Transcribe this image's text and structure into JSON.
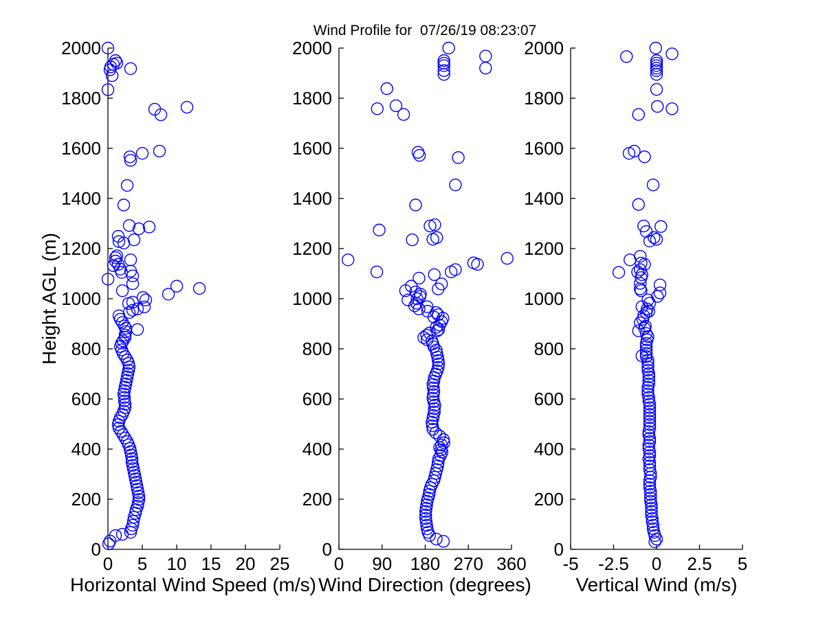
{
  "title": "Wind Profile for  07/26/19 08:23:07",
  "marker": {
    "shape": "circle",
    "color": "#0000FF"
  },
  "axis_color": "#000000",
  "background_color": "#FFFFFF",
  "chart_data": [
    {
      "type": "scatter",
      "xlabel": "Horizontal Wind Speed (m/s)",
      "ylabel": "Height AGL (m)",
      "xlim": [
        0,
        25
      ],
      "ylim": [
        0,
        2000
      ],
      "xticks": [
        0,
        5,
        10,
        15,
        20,
        25
      ],
      "yticks": [
        0,
        200,
        400,
        600,
        800,
        1000,
        1200,
        1400,
        1600,
        1800,
        2000
      ],
      "grid": false,
      "points": [
        [
          0.1,
          22
        ],
        [
          0.3,
          33
        ],
        [
          1.1,
          55
        ],
        [
          2.1,
          60
        ],
        [
          3.3,
          68
        ],
        [
          3.4,
          82
        ],
        [
          3.6,
          96
        ],
        [
          3.7,
          112
        ],
        [
          3.8,
          128
        ],
        [
          4.0,
          144
        ],
        [
          4.1,
          158
        ],
        [
          4.3,
          172
        ],
        [
          4.4,
          186
        ],
        [
          4.5,
          199
        ],
        [
          4.5,
          212
        ],
        [
          4.4,
          226
        ],
        [
          4.3,
          240
        ],
        [
          4.2,
          254
        ],
        [
          4.1,
          268
        ],
        [
          4.0,
          281
        ],
        [
          3.9,
          295
        ],
        [
          3.8,
          308
        ],
        [
          3.7,
          322
        ],
        [
          3.6,
          335
        ],
        [
          3.5,
          349
        ],
        [
          3.5,
          362
        ],
        [
          3.4,
          376
        ],
        [
          3.3,
          390
        ],
        [
          3.2,
          403
        ],
        [
          3.0,
          417
        ],
        [
          2.8,
          430
        ],
        [
          2.5,
          444
        ],
        [
          2.2,
          457
        ],
        [
          1.9,
          471
        ],
        [
          1.6,
          484
        ],
        [
          1.5,
          498
        ],
        [
          1.6,
          511
        ],
        [
          1.8,
          525
        ],
        [
          2.1,
          538
        ],
        [
          2.3,
          552
        ],
        [
          2.5,
          565
        ],
        [
          2.5,
          579
        ],
        [
          2.4,
          592
        ],
        [
          2.4,
          606
        ],
        [
          2.3,
          620
        ],
        [
          2.4,
          633
        ],
        [
          2.5,
          647
        ],
        [
          2.6,
          660
        ],
        [
          2.7,
          674
        ],
        [
          2.8,
          688
        ],
        [
          2.9,
          701
        ],
        [
          3.0,
          715
        ],
        [
          3.1,
          728
        ],
        [
          3.0,
          742
        ],
        [
          2.8,
          755
        ],
        [
          2.5,
          769
        ],
        [
          2.2,
          782
        ],
        [
          2.0,
          796
        ],
        [
          1.8,
          809
        ],
        [
          2.0,
          823
        ],
        [
          2.2,
          832
        ],
        [
          2.5,
          846
        ],
        [
          2.5,
          855
        ],
        [
          2.6,
          869
        ],
        [
          4.3,
          877
        ],
        [
          2.6,
          882
        ],
        [
          2.4,
          891
        ],
        [
          2.1,
          905
        ],
        [
          1.8,
          918
        ],
        [
          1.6,
          932
        ],
        [
          3.1,
          945
        ],
        [
          3.6,
          954
        ],
        [
          4.3,
          959
        ],
        [
          5.3,
          967
        ],
        [
          3.0,
          981
        ],
        [
          3.6,
          986
        ],
        [
          5.5,
          995
        ],
        [
          5.1,
          1005
        ],
        [
          8.8,
          1018
        ],
        [
          2.1,
          1032
        ],
        [
          13.3,
          1041
        ],
        [
          10.0,
          1050
        ],
        [
          3.6,
          1060
        ],
        [
          0.0,
          1078
        ],
        [
          3.6,
          1091
        ],
        [
          2.0,
          1105
        ],
        [
          3.3,
          1110
        ],
        [
          1.8,
          1118
        ],
        [
          0.8,
          1132
        ],
        [
          1.5,
          1137
        ],
        [
          1.1,
          1150
        ],
        [
          3.3,
          1155
        ],
        [
          1.1,
          1164
        ],
        [
          1.3,
          1171
        ],
        [
          2.3,
          1222
        ],
        [
          1.6,
          1228
        ],
        [
          3.8,
          1235
        ],
        [
          1.5,
          1249
        ],
        [
          4.5,
          1279
        ],
        [
          6.0,
          1286
        ],
        [
          3.1,
          1292
        ],
        [
          2.3,
          1374
        ],
        [
          2.8,
          1452
        ],
        [
          3.3,
          1552
        ],
        [
          3.2,
          1566
        ],
        [
          5.0,
          1580
        ],
        [
          7.5,
          1589
        ],
        [
          7.7,
          1734
        ],
        [
          6.8,
          1756
        ],
        [
          11.5,
          1764
        ],
        [
          0.0,
          1834
        ],
        [
          0.6,
          1890
        ],
        [
          0.3,
          1913
        ],
        [
          3.3,
          1918
        ],
        [
          0.4,
          1925
        ],
        [
          0.8,
          1935
        ],
        [
          1.3,
          1940
        ],
        [
          1.1,
          1950
        ],
        [
          0.0,
          2000
        ]
      ]
    },
    {
      "type": "scatter",
      "xlabel": "Wind Direction (degrees)",
      "ylabel": "",
      "xlim": [
        0,
        360
      ],
      "ylim": [
        0,
        2000
      ],
      "xticks": [
        0,
        90,
        180,
        270,
        360
      ],
      "yticks": [
        0,
        200,
        400,
        600,
        800,
        1000,
        1200,
        1400,
        1600,
        1800,
        2000
      ],
      "grid": false,
      "points": [
        [
          218,
          32
        ],
        [
          203,
          41
        ],
        [
          189,
          55
        ],
        [
          186,
          68
        ],
        [
          184,
          82
        ],
        [
          183,
          96
        ],
        [
          182,
          110
        ],
        [
          181,
          123
        ],
        [
          181,
          137
        ],
        [
          181,
          151
        ],
        [
          182,
          164
        ],
        [
          183,
          178
        ],
        [
          184,
          192
        ],
        [
          186,
          205
        ],
        [
          188,
          219
        ],
        [
          189,
          232
        ],
        [
          191,
          246
        ],
        [
          194,
          260
        ],
        [
          198,
          274
        ],
        [
          200,
          288
        ],
        [
          202,
          303
        ],
        [
          204,
          318
        ],
        [
          206,
          333
        ],
        [
          207,
          347
        ],
        [
          208,
          361
        ],
        [
          212,
          374
        ],
        [
          215,
          388
        ],
        [
          213,
          397
        ],
        [
          210,
          406
        ],
        [
          214,
          416
        ],
        [
          219,
          425
        ],
        [
          218,
          438
        ],
        [
          210,
          452
        ],
        [
          202,
          465
        ],
        [
          196,
          479
        ],
        [
          195,
          493
        ],
        [
          194,
          507
        ],
        [
          196,
          521
        ],
        [
          197,
          534
        ],
        [
          199,
          548
        ],
        [
          199,
          561
        ],
        [
          200,
          575
        ],
        [
          198,
          589
        ],
        [
          196,
          603
        ],
        [
          197,
          617
        ],
        [
          198,
          630
        ],
        [
          197,
          644
        ],
        [
          196,
          658
        ],
        [
          198,
          671
        ],
        [
          199,
          685
        ],
        [
          202,
          699
        ],
        [
          205,
          712
        ],
        [
          207,
          726
        ],
        [
          208,
          740
        ],
        [
          207,
          753
        ],
        [
          206,
          767
        ],
        [
          204,
          781
        ],
        [
          203,
          795
        ],
        [
          198,
          808
        ],
        [
          196,
          820
        ],
        [
          194,
          831
        ],
        [
          184,
          836
        ],
        [
          177,
          845
        ],
        [
          183,
          854
        ],
        [
          189,
          863
        ],
        [
          205,
          872
        ],
        [
          208,
          877
        ],
        [
          203,
          886
        ],
        [
          210,
          895
        ],
        [
          214,
          909
        ],
        [
          217,
          922
        ],
        [
          198,
          927
        ],
        [
          207,
          936
        ],
        [
          203,
          945
        ],
        [
          185,
          950
        ],
        [
          167,
          959
        ],
        [
          184,
          968
        ],
        [
          158,
          972
        ],
        [
          162,
          982
        ],
        [
          144,
          995
        ],
        [
          163,
          1000
        ],
        [
          169,
          1009
        ],
        [
          170,
          1018
        ],
        [
          160,
          1027
        ],
        [
          139,
          1032
        ],
        [
          207,
          1039
        ],
        [
          151,
          1050
        ],
        [
          214,
          1059
        ],
        [
          167,
          1082
        ],
        [
          199,
          1096
        ],
        [
          79,
          1107
        ],
        [
          234,
          1107
        ],
        [
          243,
          1116
        ],
        [
          289,
          1137
        ],
        [
          281,
          1143
        ],
        [
          19,
          1155
        ],
        [
          351,
          1161
        ],
        [
          153,
          1235
        ],
        [
          196,
          1237
        ],
        [
          204,
          1244
        ],
        [
          84,
          1274
        ],
        [
          190,
          1290
        ],
        [
          200,
          1295
        ],
        [
          160,
          1374
        ],
        [
          243,
          1454
        ],
        [
          249,
          1563
        ],
        [
          168,
          1572
        ],
        [
          165,
          1584
        ],
        [
          135,
          1735
        ],
        [
          80,
          1758
        ],
        [
          119,
          1770
        ],
        [
          100,
          1838
        ],
        [
          219,
          1895
        ],
        [
          219,
          1910
        ],
        [
          306,
          1920
        ],
        [
          219,
          1930
        ],
        [
          219,
          1940
        ],
        [
          219,
          1950
        ],
        [
          306,
          1968
        ],
        [
          229,
          2000
        ]
      ]
    },
    {
      "type": "scatter",
      "xlabel": "Vertical Wind (m/s)",
      "ylabel": "",
      "xlim": [
        -5,
        5
      ],
      "ylim": [
        0,
        2000
      ],
      "xticks": [
        -5,
        -2.5,
        0,
        2.5,
        5
      ],
      "yticks": [
        0,
        200,
        400,
        600,
        800,
        1000,
        1200,
        1400,
        1600,
        1800,
        2000
      ],
      "grid": false,
      "points": [
        [
          -0.1,
          30
        ],
        [
          0.0,
          41
        ],
        [
          -0.1,
          55
        ],
        [
          -0.15,
          68
        ],
        [
          -0.2,
          82
        ],
        [
          -0.2,
          96
        ],
        [
          -0.25,
          110
        ],
        [
          -0.25,
          123
        ],
        [
          -0.3,
          137
        ],
        [
          -0.3,
          151
        ],
        [
          -0.3,
          164
        ],
        [
          -0.3,
          178
        ],
        [
          -0.35,
          192
        ],
        [
          -0.35,
          205
        ],
        [
          -0.35,
          219
        ],
        [
          -0.35,
          232
        ],
        [
          -0.4,
          246
        ],
        [
          -0.4,
          260
        ],
        [
          -0.4,
          274
        ],
        [
          -0.35,
          288
        ],
        [
          -0.35,
          303
        ],
        [
          -0.4,
          318
        ],
        [
          -0.4,
          333
        ],
        [
          -0.4,
          347
        ],
        [
          -0.45,
          361
        ],
        [
          -0.4,
          374
        ],
        [
          -0.4,
          388
        ],
        [
          -0.45,
          402
        ],
        [
          -0.45,
          416
        ],
        [
          -0.4,
          430
        ],
        [
          -0.4,
          443
        ],
        [
          -0.45,
          457
        ],
        [
          -0.45,
          470
        ],
        [
          -0.4,
          484
        ],
        [
          -0.4,
          498
        ],
        [
          -0.4,
          511
        ],
        [
          -0.4,
          525
        ],
        [
          -0.4,
          538
        ],
        [
          -0.4,
          552
        ],
        [
          -0.4,
          565
        ],
        [
          -0.4,
          579
        ],
        [
          -0.45,
          592
        ],
        [
          -0.45,
          606
        ],
        [
          -0.5,
          620
        ],
        [
          -0.5,
          633
        ],
        [
          -0.5,
          647
        ],
        [
          -0.45,
          660
        ],
        [
          -0.45,
          674
        ],
        [
          -0.45,
          688
        ],
        [
          -0.45,
          701
        ],
        [
          -0.5,
          715
        ],
        [
          -0.5,
          728
        ],
        [
          -0.5,
          742
        ],
        [
          -0.5,
          755
        ],
        [
          -0.6,
          769
        ],
        [
          -0.85,
          772
        ],
        [
          -0.6,
          782
        ],
        [
          -0.6,
          795
        ],
        [
          -0.6,
          809
        ],
        [
          -0.6,
          822
        ],
        [
          -0.55,
          836
        ],
        [
          -0.5,
          849
        ],
        [
          -0.6,
          861
        ],
        [
          -1.05,
          872
        ],
        [
          -0.7,
          882
        ],
        [
          -0.65,
          890
        ],
        [
          -0.95,
          904
        ],
        [
          -0.8,
          918
        ],
        [
          -0.75,
          932
        ],
        [
          -0.6,
          945
        ],
        [
          -0.45,
          950
        ],
        [
          -0.55,
          959
        ],
        [
          -0.85,
          968
        ],
        [
          -0.4,
          982
        ],
        [
          -0.5,
          995
        ],
        [
          0.05,
          1009
        ],
        [
          0.2,
          1023
        ],
        [
          -0.9,
          1032
        ],
        [
          -0.95,
          1039
        ],
        [
          0.2,
          1055
        ],
        [
          -0.95,
          1061
        ],
        [
          -0.9,
          1084
        ],
        [
          -0.85,
          1096
        ],
        [
          -2.2,
          1105
        ],
        [
          -1.1,
          1107
        ],
        [
          -0.95,
          1116
        ],
        [
          -0.7,
          1137
        ],
        [
          -0.9,
          1142
        ],
        [
          -1.55,
          1155
        ],
        [
          -0.95,
          1169
        ],
        [
          -0.4,
          1230
        ],
        [
          0.0,
          1237
        ],
        [
          -0.15,
          1244
        ],
        [
          -0.6,
          1268
        ],
        [
          0.25,
          1288
        ],
        [
          -0.75,
          1290
        ],
        [
          -1.05,
          1376
        ],
        [
          -0.2,
          1454
        ],
        [
          -0.7,
          1566
        ],
        [
          -1.6,
          1580
        ],
        [
          -1.3,
          1589
        ],
        [
          -1.05,
          1735
        ],
        [
          0.9,
          1758
        ],
        [
          0.05,
          1767
        ],
        [
          0.0,
          1835
        ],
        [
          0.0,
          1895
        ],
        [
          0.0,
          1910
        ],
        [
          0.0,
          1920
        ],
        [
          0.0,
          1930
        ],
        [
          0.0,
          1940
        ],
        [
          0.0,
          1950
        ],
        [
          -1.75,
          1966
        ],
        [
          0.9,
          1977
        ],
        [
          -0.05,
          2000
        ]
      ]
    }
  ]
}
